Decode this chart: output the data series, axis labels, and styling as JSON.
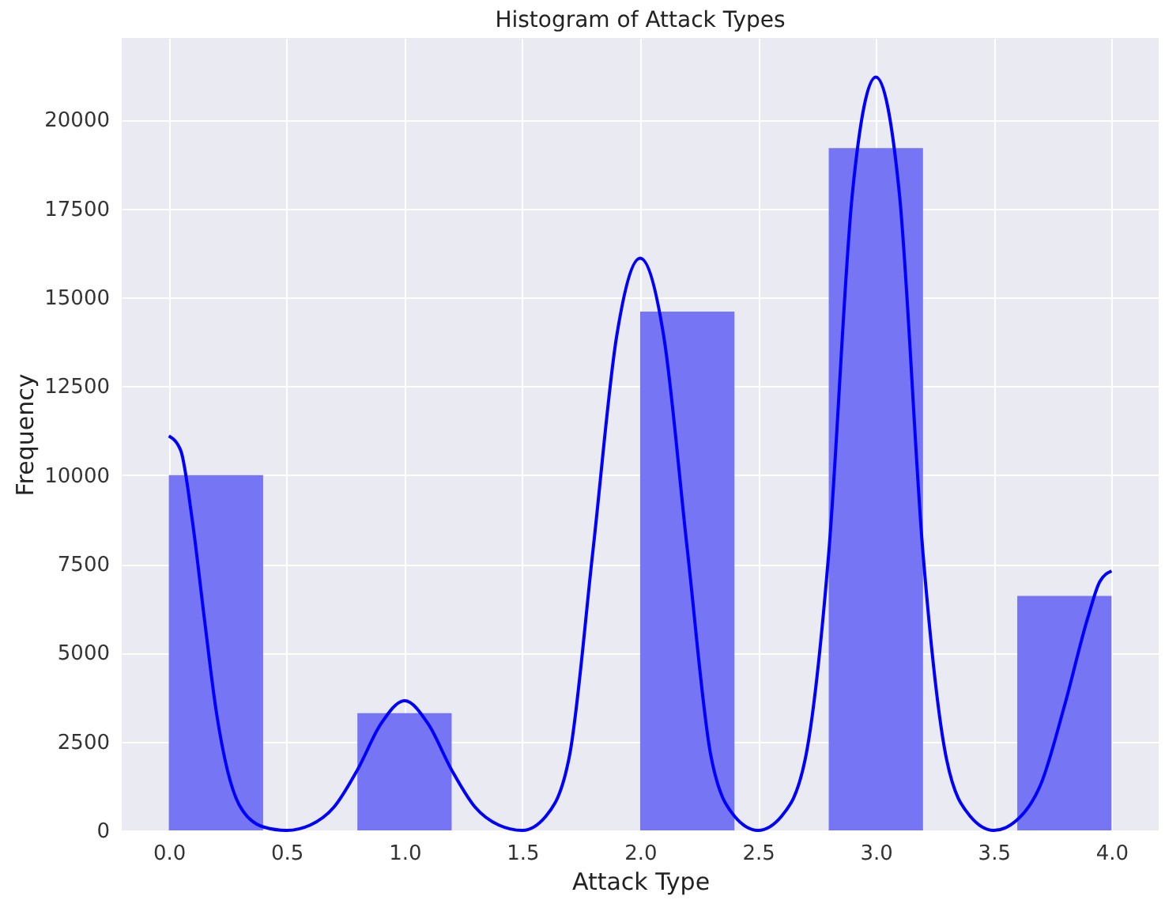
{
  "chart_data": {
    "type": "histogram",
    "title": "Histogram of Attack Types",
    "xlabel": "Attack Type",
    "ylabel": "Frequency",
    "bins": [
      0,
      0.4,
      0.8,
      1.2,
      1.6,
      2.0,
      2.4,
      2.8,
      3.2,
      3.6,
      4.0
    ],
    "values": [
      10000,
      0,
      3300,
      0,
      0,
      14600,
      0,
      19200,
      0,
      6600
    ],
    "color": "#7676f5",
    "series": [
      {
        "type": "line",
        "color": "#0000ff",
        "x": [
          0,
          0.05,
          0.1,
          0.15,
          0.2,
          0.3,
          0.4,
          0.5,
          0.6,
          0.7,
          0.8,
          0.9,
          1.0,
          1.1,
          1.2,
          1.3,
          1.4,
          1.5,
          1.6,
          1.7,
          1.8,
          1.9,
          2.0,
          2.1,
          2.2,
          2.3,
          2.4,
          2.5,
          2.6,
          2.7,
          2.8,
          2.9,
          3.0,
          3.1,
          3.2,
          3.3,
          3.4,
          3.5,
          3.6,
          3.7,
          3.8,
          3.9,
          3.95,
          4.0
        ],
        "values": [
          11100,
          10700,
          8700,
          6000,
          3400,
          700,
          100,
          0,
          150,
          650,
          1700,
          3000,
          3650,
          3000,
          1700,
          650,
          150,
          0,
          400,
          2100,
          7900,
          13900,
          16100,
          13900,
          7900,
          2100,
          400,
          0,
          400,
          2000,
          7800,
          17900,
          21200,
          17900,
          7800,
          2000,
          400,
          0,
          300,
          1300,
          3500,
          6000,
          7000,
          7300
        ]
      }
    ],
    "xlim": [
      -0.2,
      4.2
    ],
    "ylim": [
      0,
      22300
    ],
    "xticks": [
      {
        "value": 0,
        "label": "0.0"
      },
      {
        "value": 0.5,
        "label": "0.5"
      },
      {
        "value": 1,
        "label": "1.0"
      },
      {
        "value": 1.5,
        "label": "1.5"
      },
      {
        "value": 2,
        "label": "2.0"
      },
      {
        "value": 2.5,
        "label": "2.5"
      },
      {
        "value": 3,
        "label": "3.0"
      },
      {
        "value": 3.5,
        "label": "3.5"
      },
      {
        "value": 4,
        "label": "4.0"
      }
    ],
    "yticks": [
      0,
      2500,
      5000,
      7500,
      10000,
      12500,
      15000,
      17500,
      20000
    ],
    "grid": true
  }
}
